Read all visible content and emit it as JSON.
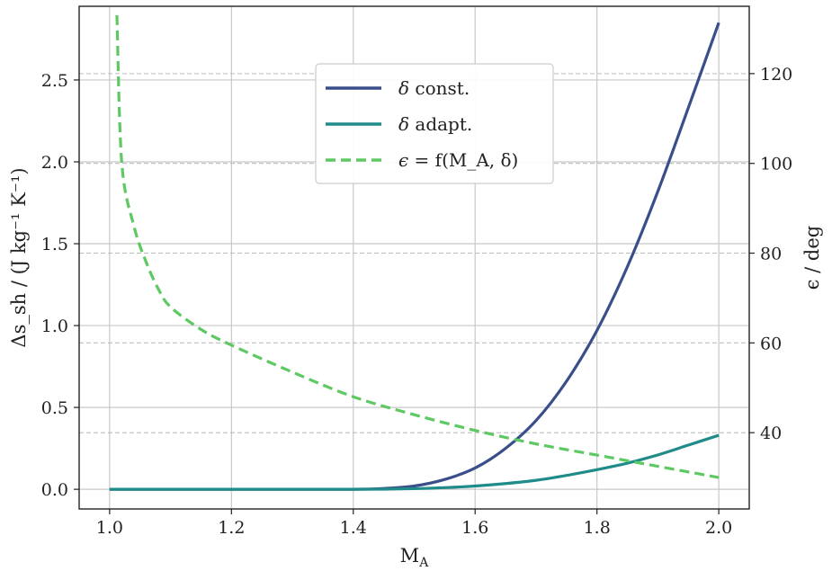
{
  "chart_data": {
    "type": "line",
    "xlabel": "M",
    "xlabel_sub": "A",
    "ylabel_left": "Δs_sh / (J kg⁻¹ K⁻¹)",
    "ylabel_right": "ϵ / deg",
    "xlim": [
      0.95,
      2.05
    ],
    "ylim_left": [
      -0.12,
      2.95
    ],
    "ylim_right": [
      23,
      135
    ],
    "x_ticks": [
      1.0,
      1.2,
      1.4,
      1.6,
      1.8,
      2.0
    ],
    "x_tick_labels": [
      "1.0",
      "1.2",
      "1.4",
      "1.6",
      "1.8",
      "2.0"
    ],
    "y_left_ticks": [
      0.0,
      0.5,
      1.0,
      1.5,
      2.0,
      2.5
    ],
    "y_left_tick_labels": [
      "0.0",
      "0.5",
      "1.0",
      "1.5",
      "2.0",
      "2.5"
    ],
    "y_right_ticks": [
      40,
      60,
      80,
      100,
      120
    ],
    "y_right_tick_labels": [
      "40",
      "60",
      "80",
      "100",
      "120"
    ],
    "grid": true,
    "legend_position": "top-center",
    "series": [
      {
        "name": "δ const.",
        "axis": "left",
        "color": "#3a4f8a",
        "dash": "solid",
        "x": [
          1.0,
          1.1,
          1.2,
          1.3,
          1.4,
          1.45,
          1.5,
          1.55,
          1.6,
          1.65,
          1.7,
          1.75,
          1.8,
          1.85,
          1.9,
          1.95,
          2.0
        ],
        "y": [
          0.0,
          0.0,
          0.0,
          0.0,
          0.0,
          0.005,
          0.02,
          0.06,
          0.13,
          0.25,
          0.42,
          0.66,
          0.97,
          1.36,
          1.82,
          2.33,
          2.85
        ]
      },
      {
        "name": "δ adapt.",
        "axis": "left",
        "color": "#1f8c8a",
        "dash": "solid",
        "x": [
          1.0,
          1.1,
          1.2,
          1.3,
          1.4,
          1.45,
          1.5,
          1.55,
          1.6,
          1.65,
          1.7,
          1.75,
          1.8,
          1.85,
          1.9,
          1.95,
          2.0
        ],
        "y": [
          0.0,
          0.0,
          0.0,
          0.0,
          0.0,
          0.001,
          0.004,
          0.01,
          0.02,
          0.035,
          0.055,
          0.085,
          0.12,
          0.16,
          0.21,
          0.27,
          0.33
        ]
      },
      {
        "name": "ϵ = f(M_A, δ)",
        "axis": "right",
        "color": "#5ec962",
        "dash": "dashed",
        "x": [
          1.012,
          1.02,
          1.04,
          1.06,
          1.08,
          1.1,
          1.15,
          1.2,
          1.3,
          1.4,
          1.5,
          1.6,
          1.7,
          1.8,
          1.9,
          2.0
        ],
        "y": [
          133,
          100,
          86,
          78,
          72,
          68,
          63,
          59.5,
          53.5,
          48,
          44,
          40.5,
          37.5,
          35,
          32.5,
          30
        ]
      }
    ]
  },
  "legend": {
    "items": [
      {
        "symbol": "δ",
        "text": " const.",
        "color": "#3a4f8a",
        "dash": "solid"
      },
      {
        "symbol": "δ",
        "text": " adapt.",
        "color": "#1f8c8a",
        "dash": "solid"
      },
      {
        "symbol": "ϵ",
        "text": " = f(M_A, δ)",
        "color": "#5ec962",
        "dash": "dashed"
      }
    ]
  }
}
